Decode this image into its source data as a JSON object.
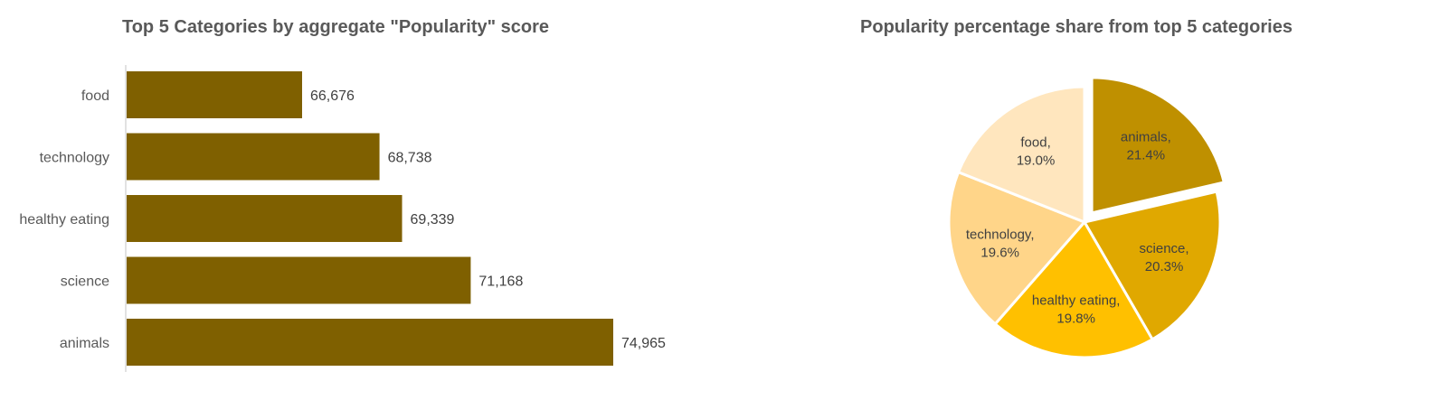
{
  "chart_data": [
    {
      "type": "bar",
      "orientation": "horizontal",
      "title": "Top 5 Categories by aggregate \"Popularity\" score",
      "categories": [
        "food",
        "technology",
        "healthy eating",
        "science",
        "animals"
      ],
      "values": [
        66676,
        68738,
        69339,
        71168,
        74965
      ],
      "value_labels": [
        "66,676",
        "68,738",
        "69,339",
        "71,168",
        "74,965"
      ],
      "bar_color": "#7F6000",
      "grid": false,
      "legend": "none"
    },
    {
      "type": "pie",
      "title": "Popularity percentage share from top 5 categories",
      "slices": [
        {
          "label": "animals",
          "percent": 21.4,
          "percent_label": "21.4%",
          "color": "#BF9000",
          "exploded": true
        },
        {
          "label": "science",
          "percent": 20.3,
          "percent_label": "20.3%",
          "color": "#E0A800",
          "exploded": false
        },
        {
          "label": "healthy eating",
          "percent": 19.8,
          "percent_label": "19.8%",
          "color": "#FFC000",
          "exploded": false
        },
        {
          "label": "technology",
          "percent": 19.6,
          "percent_label": "19.6%",
          "color": "#FFD589",
          "exploded": false
        },
        {
          "label": "food",
          "percent": 19.0,
          "percent_label": "19.0%",
          "color": "#FFE6BE",
          "exploded": false
        }
      ],
      "legend": "none"
    }
  ]
}
